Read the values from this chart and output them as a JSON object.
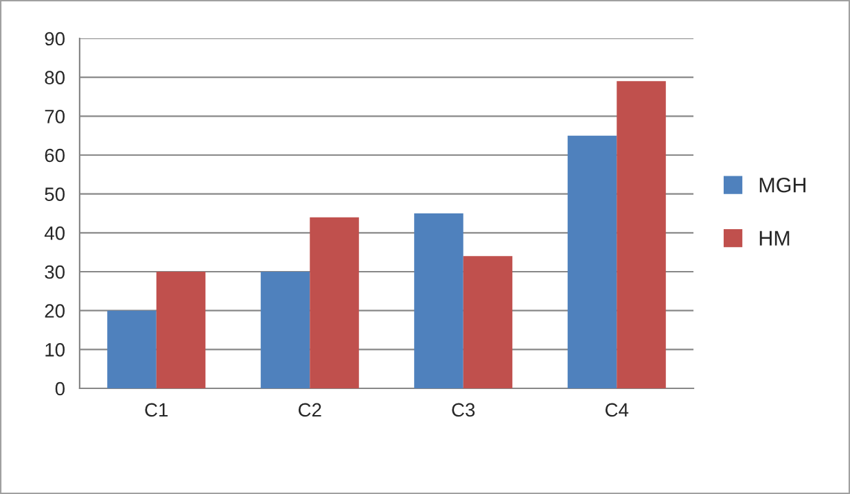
{
  "chart_data": {
    "type": "bar",
    "categories": [
      "C1",
      "C2",
      "C3",
      "C4"
    ],
    "series": [
      {
        "name": "MGH",
        "color": "#4f81bd",
        "values": [
          20,
          30,
          45,
          65
        ]
      },
      {
        "name": "HM",
        "color": "#c0504d",
        "values": [
          30,
          44,
          34,
          79
        ]
      }
    ],
    "ylim": [
      0,
      90
    ],
    "yticks": [
      0,
      10,
      20,
      30,
      40,
      50,
      60,
      70,
      80,
      90
    ],
    "grid": "y",
    "legend": "right"
  }
}
